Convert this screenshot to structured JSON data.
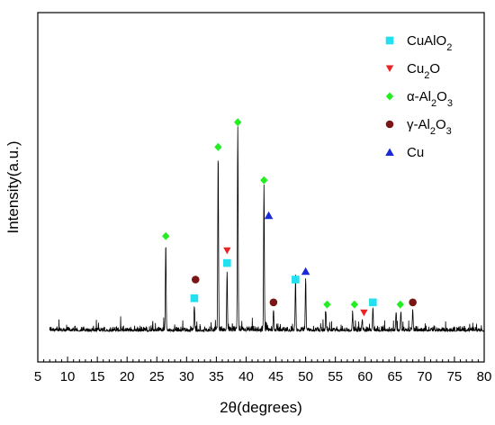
{
  "chart_data": {
    "type": "line",
    "xlabel": "2θ(degrees)",
    "ylabel": "Intensity(a.u.)",
    "xlim": [
      5,
      80
    ],
    "x_major_ticks": [
      5,
      10,
      15,
      20,
      25,
      30,
      35,
      40,
      45,
      50,
      55,
      60,
      65,
      70,
      75,
      80
    ],
    "x_minor_step": 1,
    "y_tick_labels": "none",
    "grid": false,
    "legend_position": "top-right",
    "background_level": 0.03,
    "peaks": [
      {
        "x": 26.5,
        "height": 0.42
      },
      {
        "x": 31.3,
        "height": 0.12
      },
      {
        "x": 35.3,
        "height": 0.85
      },
      {
        "x": 36.8,
        "height": 0.27
      },
      {
        "x": 38.6,
        "height": 0.98
      },
      {
        "x": 43.0,
        "height": 0.69
      },
      {
        "x": 44.6,
        "height": 0.1
      },
      {
        "x": 48.3,
        "height": 0.24
      },
      {
        "x": 50.0,
        "height": 0.25
      },
      {
        "x": 53.4,
        "height": 0.09
      },
      {
        "x": 57.9,
        "height": 0.08
      },
      {
        "x": 59.5,
        "height": 0.05
      },
      {
        "x": 61.3,
        "height": 0.11
      },
      {
        "x": 65.2,
        "height": 0.09
      },
      {
        "x": 66.0,
        "height": 0.09
      },
      {
        "x": 68.0,
        "height": 0.1
      }
    ],
    "markers": [
      {
        "series": "CuAlO2",
        "x": 31.3,
        "y": 0.16
      },
      {
        "series": "CuAlO2",
        "x": 36.8,
        "y": 0.33
      },
      {
        "series": "CuAlO2",
        "x": 48.3,
        "y": 0.25
      },
      {
        "series": "CuAlO2",
        "x": 61.3,
        "y": 0.14
      },
      {
        "series": "Cu2O",
        "x": 36.8,
        "y": 0.39
      },
      {
        "series": "Cu2O",
        "x": 59.8,
        "y": 0.09
      },
      {
        "series": "alpha-Al2O3",
        "x": 26.5,
        "y": 0.46
      },
      {
        "series": "alpha-Al2O3",
        "x": 35.3,
        "y": 0.89
      },
      {
        "series": "alpha-Al2O3",
        "x": 38.6,
        "y": 1.01
      },
      {
        "series": "alpha-Al2O3",
        "x": 43.0,
        "y": 0.73
      },
      {
        "series": "alpha-Al2O3",
        "x": 53.6,
        "y": 0.13
      },
      {
        "series": "alpha-Al2O3",
        "x": 58.2,
        "y": 0.13
      },
      {
        "series": "alpha-Al2O3",
        "x": 65.9,
        "y": 0.13
      },
      {
        "series": "gamma-Al2O3",
        "x": 31.5,
        "y": 0.25
      },
      {
        "series": "gamma-Al2O3",
        "x": 44.6,
        "y": 0.14
      },
      {
        "series": "gamma-Al2O3",
        "x": 68.0,
        "y": 0.14
      },
      {
        "series": "Cu",
        "x": 43.8,
        "y": 0.56
      },
      {
        "series": "Cu",
        "x": 50.0,
        "y": 0.29
      }
    ],
    "series": [
      {
        "key": "CuAlO2",
        "name": "CuAlO2",
        "label_main": "CuAlO",
        "label_sub": "2",
        "label_tail": "",
        "shape": "square",
        "color": "#22e0f0"
      },
      {
        "key": "Cu2O",
        "name": "Cu2O",
        "label_main": "Cu",
        "label_sub": "2",
        "label_tail": "O",
        "shape": "triangle-down",
        "color": "#ee2222"
      },
      {
        "key": "alpha-Al2O3",
        "name": "α-Al2O3",
        "label_main": "α-Al",
        "label_sub": "2",
        "label_tail": "O",
        "label_sub2": "3",
        "shape": "diamond",
        "color": "#22ee22"
      },
      {
        "key": "gamma-Al2O3",
        "name": "γ-Al2O3",
        "label_main": "γ-Al",
        "label_sub": "2",
        "label_tail": "O",
        "label_sub2": "3",
        "shape": "circle",
        "color": "#7a1515"
      },
      {
        "key": "Cu",
        "name": "Cu",
        "label_main": "Cu",
        "label_sub": "",
        "label_tail": "",
        "shape": "triangle-up",
        "color": "#1a2ad6"
      }
    ]
  }
}
